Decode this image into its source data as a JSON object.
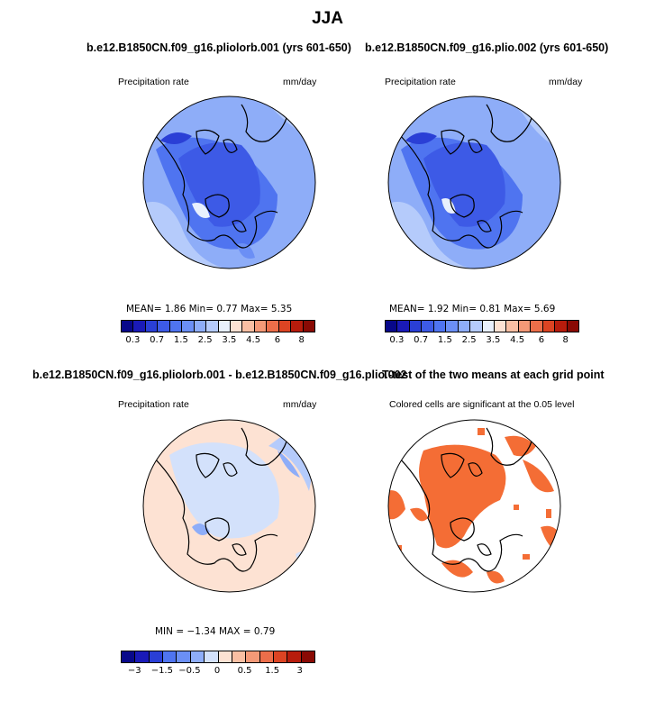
{
  "title": "JJA",
  "panels": {
    "p1": {
      "title": "b.e12.B1850CN.f09_g16.pliolorb.001 (yrs 601-650)",
      "left_label": "Precipitation rate",
      "right_label": "mm/day",
      "stats": "MEAN=   1.86   Min=    0.77   Max=    5.35",
      "ticks": [
        "0.3",
        "0.7",
        "1.5",
        "2.5",
        "3.5",
        "4.5",
        "6",
        "8"
      ]
    },
    "p2": {
      "title": "b.e12.B1850CN.f09_g16.plio.002 (yrs 601-650)",
      "left_label": "Precipitation rate",
      "right_label": "mm/day",
      "stats": "MEAN=   1.92   Min=    0.81   Max=    5.69",
      "ticks": [
        "0.3",
        "0.7",
        "1.5",
        "2.5",
        "3.5",
        "4.5",
        "6",
        "8"
      ]
    },
    "p3": {
      "title": "b.e12.B1850CN.f09_g16.pliolorb.001 - b.e12.B1850CN.f09_g16.plio.002",
      "left_label": "Precipitation rate",
      "right_label": "mm/day",
      "stats": "MIN =   −1.34  MAX =     0.79",
      "ticks": [
        "−3",
        "−1.5",
        "−0.5",
        "0",
        "0.5",
        "1.5",
        "3"
      ]
    },
    "p4": {
      "title": "T-test of the two means at each grid point",
      "left_label": "Colored cells are significant at the 0.05 level"
    }
  },
  "chart_data": [
    {
      "type": "heatmap",
      "title": "b.e12.B1850CN.f09_g16.pliolorb.001 (yrs 601-650)",
      "variable": "Precipitation rate",
      "units": "mm/day",
      "projection": "north polar stereographic",
      "mean": 1.86,
      "min": 0.77,
      "max": 5.35,
      "colorbar_levels": [
        0.3,
        0.5,
        0.7,
        1.0,
        1.5,
        2.0,
        2.5,
        3.0,
        3.5,
        4.0,
        4.5,
        5.0,
        6.0,
        7.0,
        8.0
      ],
      "colorbar_labels": [
        "0.3",
        "0.7",
        "1.5",
        "2.5",
        "3.5",
        "4.5",
        "6",
        "8"
      ],
      "colors": [
        "#08088a",
        "#1a1ab8",
        "#2a3fd6",
        "#3d5ae6",
        "#4f74f0",
        "#6b8ff5",
        "#8eadf8",
        "#b5cbfb",
        "#e8f0fd",
        "#fde2d3",
        "#f9bfa3",
        "#f49977",
        "#ec6e4a",
        "#dc4423",
        "#b71c0c",
        "#8a0a04"
      ]
    },
    {
      "type": "heatmap",
      "title": "b.e12.B1850CN.f09_g16.plio.002 (yrs 601-650)",
      "variable": "Precipitation rate",
      "units": "mm/day",
      "projection": "north polar stereographic",
      "mean": 1.92,
      "min": 0.81,
      "max": 5.69,
      "colorbar_levels": [
        0.3,
        0.5,
        0.7,
        1.0,
        1.5,
        2.0,
        2.5,
        3.0,
        3.5,
        4.0,
        4.5,
        5.0,
        6.0,
        7.0,
        8.0
      ],
      "colorbar_labels": [
        "0.3",
        "0.7",
        "1.5",
        "2.5",
        "3.5",
        "4.5",
        "6",
        "8"
      ],
      "colors": [
        "#08088a",
        "#1a1ab8",
        "#2a3fd6",
        "#3d5ae6",
        "#4f74f0",
        "#6b8ff5",
        "#8eadf8",
        "#b5cbfb",
        "#e8f0fd",
        "#fde2d3",
        "#f9bfa3",
        "#f49977",
        "#ec6e4a",
        "#dc4423",
        "#b71c0c",
        "#8a0a04"
      ]
    },
    {
      "type": "heatmap",
      "title": "b.e12.B1850CN.f09_g16.pliolorb.001 - b.e12.B1850CN.f09_g16.plio.002",
      "variable": "Precipitation rate",
      "units": "mm/day",
      "projection": "north polar stereographic",
      "min": -1.34,
      "max": 0.79,
      "colorbar_levels": [
        -3,
        -2,
        -1.5,
        -1,
        -0.5,
        -0.25,
        0,
        0.25,
        0.5,
        1,
        1.5,
        2,
        3
      ],
      "colorbar_labels": [
        "−3",
        "−1.5",
        "−0.5",
        "0",
        "0.5",
        "1.5",
        "3"
      ],
      "colors": [
        "#08088a",
        "#1a1ab8",
        "#2a3fd6",
        "#4f74f0",
        "#6b8ff5",
        "#8eadf8",
        "#d3e1fb",
        "#fde2d3",
        "#f9bfa3",
        "#f49977",
        "#ec6e4a",
        "#dc4423",
        "#b71c0c",
        "#8a0a04"
      ]
    },
    {
      "type": "heatmap",
      "title": "T-test of the two means at each grid point",
      "annotation": "Colored cells are significant at the 0.05 level",
      "significance_level": 0.05,
      "colors": [
        "#ffffff",
        "#f46d35"
      ]
    }
  ]
}
